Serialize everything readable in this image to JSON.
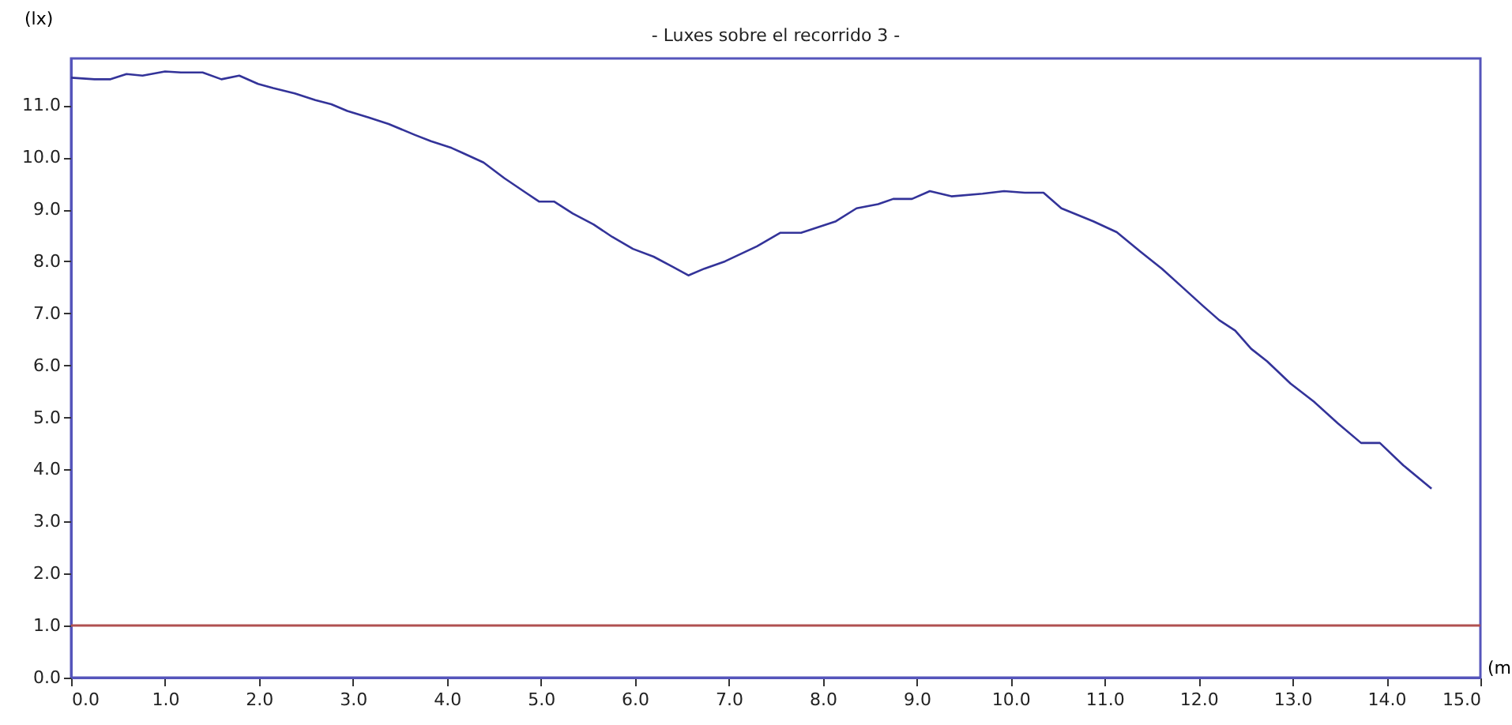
{
  "chart_data": {
    "type": "line",
    "title": "- Luxes sobre el recorrido 3 -",
    "xlabel": "(m",
    "ylabel": "(lx)",
    "x": [
      0,
      0.25,
      0.42,
      0.59,
      0.76,
      1.0,
      1.17,
      1.4,
      1.6,
      1.79,
      1.99,
      2.15,
      2.38,
      2.6,
      2.77,
      2.94,
      3.16,
      3.38,
      3.66,
      3.83,
      4.05,
      4.16,
      4.39,
      4.61,
      4.84,
      4.98,
      5.14,
      5.34,
      5.56,
      5.76,
      5.98,
      6.2,
      6.4,
      6.57,
      6.74,
      6.96,
      7.3,
      7.55,
      7.77,
      8.14,
      8.36,
      8.59,
      8.75,
      8.95,
      9.14,
      9.37,
      9.7,
      9.93,
      10.15,
      10.35,
      10.54,
      10.88,
      11.13,
      11.38,
      11.61,
      11.83,
      12.05,
      12.22,
      12.39,
      12.56,
      12.73,
      12.98,
      13.23,
      13.48,
      13.73,
      13.93,
      14.18,
      14.48
    ],
    "series": [
      {
        "color": "#333399",
        "values": [
          11.53,
          11.5,
          11.5,
          11.6,
          11.57,
          11.65,
          11.63,
          11.63,
          11.5,
          11.57,
          11.41,
          11.33,
          11.23,
          11.1,
          11.02,
          10.89,
          10.77,
          10.64,
          10.43,
          10.31,
          10.18,
          10.09,
          9.9,
          9.6,
          9.32,
          9.15,
          9.15,
          8.92,
          8.71,
          8.47,
          8.24,
          8.09,
          7.9,
          7.73,
          7.86,
          8.0,
          8.29,
          8.55,
          8.55,
          8.77,
          9.02,
          9.1,
          9.2,
          9.2,
          9.35,
          9.25,
          9.3,
          9.35,
          9.32,
          9.32,
          9.02,
          8.77,
          8.56,
          8.19,
          7.86,
          7.5,
          7.14,
          6.87,
          6.67,
          6.32,
          6.08,
          5.65,
          5.3,
          4.89,
          4.51,
          4.51,
          4.08,
          3.63
        ]
      }
    ],
    "ref_lines": [
      {
        "axis": "y",
        "value": 1,
        "color": "#b05050"
      }
    ],
    "xlim": [
      0,
      15
    ],
    "ylim": [
      0,
      11.9
    ],
    "xticks": [
      {
        "value": 0,
        "label": "0.0"
      },
      {
        "value": 1,
        "label": "1.0"
      },
      {
        "value": 2,
        "label": "2.0"
      },
      {
        "value": 3,
        "label": "3.0"
      },
      {
        "value": 4,
        "label": "4.0"
      },
      {
        "value": 5,
        "label": "5.0"
      },
      {
        "value": 6,
        "label": "6.0"
      },
      {
        "value": 7,
        "label": "7.0"
      },
      {
        "value": 8,
        "label": "8.0"
      },
      {
        "value": 9,
        "label": "9.0"
      },
      {
        "value": 10,
        "label": "10.0"
      },
      {
        "value": 11,
        "label": "11.0"
      },
      {
        "value": 12,
        "label": "12.0"
      },
      {
        "value": 13,
        "label": "13.0"
      },
      {
        "value": 14,
        "label": "14.0"
      },
      {
        "value": 15,
        "label": "15.0"
      }
    ],
    "yticks": [
      {
        "value": 0,
        "label": "0.0"
      },
      {
        "value": 1,
        "label": "1.0"
      },
      {
        "value": 2,
        "label": "2.0"
      },
      {
        "value": 3,
        "label": "3.0"
      },
      {
        "value": 4,
        "label": "4.0"
      },
      {
        "value": 5,
        "label": "5.0"
      },
      {
        "value": 6,
        "label": "6.0"
      },
      {
        "value": 7,
        "label": "7.0"
      },
      {
        "value": 8,
        "label": "8.0"
      },
      {
        "value": 9,
        "label": "9.0"
      },
      {
        "value": 10,
        "label": "10.0"
      },
      {
        "value": 11,
        "label": "11.0"
      }
    ],
    "grid": false,
    "legend": false,
    "marker": "none",
    "line_style": "solid"
  }
}
